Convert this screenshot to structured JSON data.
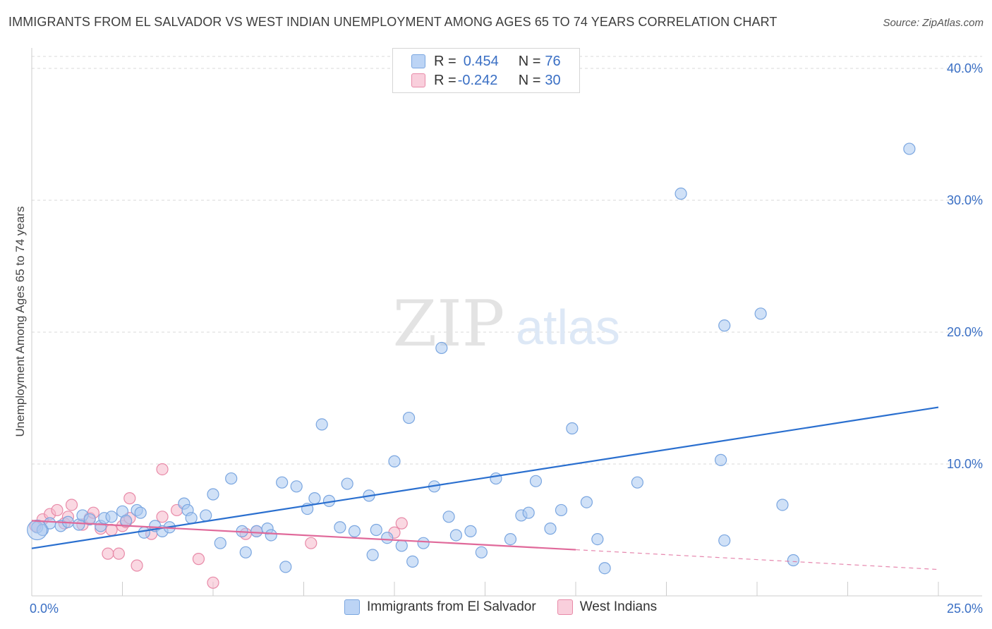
{
  "header": {
    "title": "IMMIGRANTS FROM EL SALVADOR VS WEST INDIAN UNEMPLOYMENT AMONG AGES 65 TO 74 YEARS CORRELATION CHART",
    "source": "Source: ZipAtlas.com"
  },
  "watermark": {
    "zip": "ZIP",
    "atlas": "atlas"
  },
  "colors": {
    "blue_fill": "#a9c8f0",
    "blue_stroke": "#7aa6e0",
    "blue_line": "#2a6fcf",
    "pink_fill": "#f5b8cb",
    "pink_stroke": "#e88aa8",
    "pink_line": "#e0699a",
    "axis_label": "#3a6fc4",
    "grid": "#d9d9d9"
  },
  "legend": {
    "rows": [
      {
        "r_label": "R = ",
        "r_value": "0.454",
        "n_label": "N = ",
        "n_value": "76"
      },
      {
        "r_label": "R = ",
        "r_value": "-0.242",
        "n_label": "N = ",
        "n_value": "30"
      }
    ]
  },
  "bottom_legend": {
    "items": [
      {
        "label": "Immigrants from El Salvador"
      },
      {
        "label": "West Indians"
      }
    ]
  },
  "chart_data": {
    "type": "scatter",
    "title": "IMMIGRANTS FROM EL SALVADOR VS WEST INDIAN UNEMPLOYMENT AMONG AGES 65 TO 74 YEARS CORRELATION CHART",
    "xlabel": "",
    "ylabel": "Unemployment Among Ages 65 to 74 years",
    "xlim": [
      0,
      25
    ],
    "ylim": [
      0,
      40
    ],
    "x_tick_labels": [
      "0.0%",
      "25.0%"
    ],
    "y_ticks": [
      10,
      20,
      30,
      40
    ],
    "y_tick_labels": [
      "10.0%",
      "20.0%",
      "30.0%",
      "40.0%"
    ],
    "grid": true,
    "legend_position": "top-center",
    "series": [
      {
        "name": "Immigrants from El Salvador",
        "color": "#a9c8f0",
        "r": 0.454,
        "n": 76,
        "trend": {
          "x": [
            0,
            25
          ],
          "y": [
            3.6,
            14.3
          ]
        },
        "points": [
          [
            0.15,
            5.2
          ],
          [
            0.3,
            5.0
          ],
          [
            0.5,
            5.5
          ],
          [
            0.8,
            5.3
          ],
          [
            1.0,
            5.6
          ],
          [
            1.3,
            5.4
          ],
          [
            1.4,
            6.1
          ],
          [
            1.6,
            5.8
          ],
          [
            1.9,
            5.3
          ],
          [
            2.0,
            5.9
          ],
          [
            2.2,
            6.0
          ],
          [
            2.5,
            6.4
          ],
          [
            2.6,
            5.7
          ],
          [
            2.9,
            6.5
          ],
          [
            3.0,
            6.3
          ],
          [
            3.1,
            4.8
          ],
          [
            3.4,
            5.3
          ],
          [
            3.6,
            4.9
          ],
          [
            3.8,
            5.2
          ],
          [
            4.2,
            7.0
          ],
          [
            4.3,
            6.5
          ],
          [
            4.4,
            5.9
          ],
          [
            4.8,
            6.1
          ],
          [
            5.0,
            7.7
          ],
          [
            5.2,
            4.0
          ],
          [
            5.5,
            8.9
          ],
          [
            5.8,
            4.9
          ],
          [
            5.9,
            3.3
          ],
          [
            6.2,
            4.9
          ],
          [
            6.5,
            5.1
          ],
          [
            6.6,
            4.6
          ],
          [
            6.9,
            8.6
          ],
          [
            7.0,
            2.2
          ],
          [
            7.3,
            8.3
          ],
          [
            7.6,
            6.6
          ],
          [
            7.8,
            7.4
          ],
          [
            8.0,
            13.0
          ],
          [
            8.2,
            7.2
          ],
          [
            8.5,
            5.2
          ],
          [
            8.7,
            8.5
          ],
          [
            8.9,
            4.9
          ],
          [
            9.3,
            7.6
          ],
          [
            9.4,
            3.1
          ],
          [
            9.5,
            5.0
          ],
          [
            9.8,
            4.4
          ],
          [
            10.0,
            10.2
          ],
          [
            10.2,
            3.8
          ],
          [
            10.4,
            13.5
          ],
          [
            10.5,
            2.6
          ],
          [
            10.8,
            4.0
          ],
          [
            11.1,
            8.3
          ],
          [
            11.3,
            18.8
          ],
          [
            11.5,
            6.0
          ],
          [
            11.7,
            4.6
          ],
          [
            12.1,
            4.9
          ],
          [
            12.4,
            3.3
          ],
          [
            12.8,
            8.9
          ],
          [
            13.2,
            4.3
          ],
          [
            13.5,
            6.1
          ],
          [
            13.7,
            6.3
          ],
          [
            13.9,
            8.7
          ],
          [
            14.3,
            5.1
          ],
          [
            14.6,
            6.5
          ],
          [
            14.9,
            12.7
          ],
          [
            15.3,
            7.1
          ],
          [
            15.6,
            4.3
          ],
          [
            15.8,
            2.1
          ],
          [
            16.7,
            8.6
          ],
          [
            17.9,
            30.5
          ],
          [
            19.0,
            10.3
          ],
          [
            19.1,
            4.2
          ],
          [
            19.1,
            20.5
          ],
          [
            20.1,
            21.4
          ],
          [
            20.7,
            6.9
          ],
          [
            21.0,
            2.7
          ],
          [
            24.2,
            33.9
          ]
        ]
      },
      {
        "name": "West Indians",
        "color": "#f5b8cb",
        "r": -0.242,
        "n": 30,
        "trend": {
          "x": [
            0,
            15
          ],
          "y": [
            5.7,
            3.5
          ]
        },
        "trend_dashed": {
          "x": [
            15,
            25
          ],
          "y": [
            3.5,
            2.0
          ]
        },
        "points": [
          [
            0.1,
            5.3
          ],
          [
            0.3,
            5.8
          ],
          [
            0.5,
            6.2
          ],
          [
            0.7,
            6.5
          ],
          [
            0.9,
            5.5
          ],
          [
            1.0,
            6.0
          ],
          [
            1.1,
            6.9
          ],
          [
            1.4,
            5.4
          ],
          [
            1.6,
            5.9
          ],
          [
            1.7,
            6.3
          ],
          [
            1.9,
            5.1
          ],
          [
            2.1,
            3.2
          ],
          [
            2.2,
            5.0
          ],
          [
            2.4,
            3.2
          ],
          [
            2.5,
            5.3
          ],
          [
            2.6,
            5.6
          ],
          [
            2.7,
            5.9
          ],
          [
            2.7,
            7.4
          ],
          [
            2.9,
            2.3
          ],
          [
            3.3,
            4.7
          ],
          [
            3.6,
            6.0
          ],
          [
            3.6,
            9.6
          ],
          [
            4.0,
            6.5
          ],
          [
            4.6,
            2.8
          ],
          [
            5.0,
            1.0
          ],
          [
            5.9,
            4.7
          ],
          [
            6.2,
            4.9
          ],
          [
            7.7,
            4.0
          ],
          [
            10.0,
            4.8
          ],
          [
            10.2,
            5.5
          ]
        ]
      }
    ]
  }
}
